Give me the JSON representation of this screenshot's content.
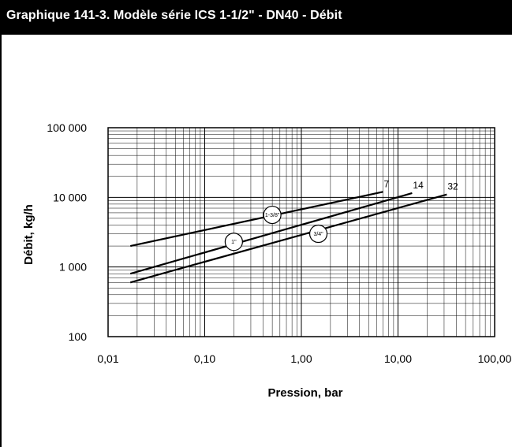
{
  "title": "Graphique 141-3. Modèle série ICS 1-1/2\" - DN40 - Débit",
  "chart_data": {
    "type": "line",
    "x_scale": "log",
    "y_scale": "log",
    "xlim": [
      0.01,
      100
    ],
    "ylim": [
      100,
      100000
    ],
    "grid": true,
    "xlabel": "Pression, bar",
    "ylabel": "Débit, kg/h",
    "x_ticks": [
      0.01,
      0.1,
      1,
      10,
      100
    ],
    "x_tick_labels": [
      "0,01",
      "0,10",
      "1,00",
      "10,00",
      "100,00"
    ],
    "y_ticks": [
      100,
      1000,
      10000,
      100000
    ],
    "y_tick_labels": [
      "100",
      "1 000",
      "10 000",
      "100 000"
    ],
    "series": [
      {
        "name": "7",
        "port": "1-3/8\"",
        "x": [
          0.017,
          7.0
        ],
        "y": [
          2000,
          12000
        ],
        "port_at": [
          0.5,
          5600
        ]
      },
      {
        "name": "14",
        "port": "1\"",
        "x": [
          0.017,
          14.0
        ],
        "y": [
          800,
          11500
        ],
        "port_at": [
          0.2,
          2300
        ]
      },
      {
        "name": "32",
        "port": "3/4\"",
        "x": [
          0.017,
          32.0
        ],
        "y": [
          600,
          11000
        ],
        "port_at": [
          1.5,
          3000
        ]
      }
    ]
  }
}
